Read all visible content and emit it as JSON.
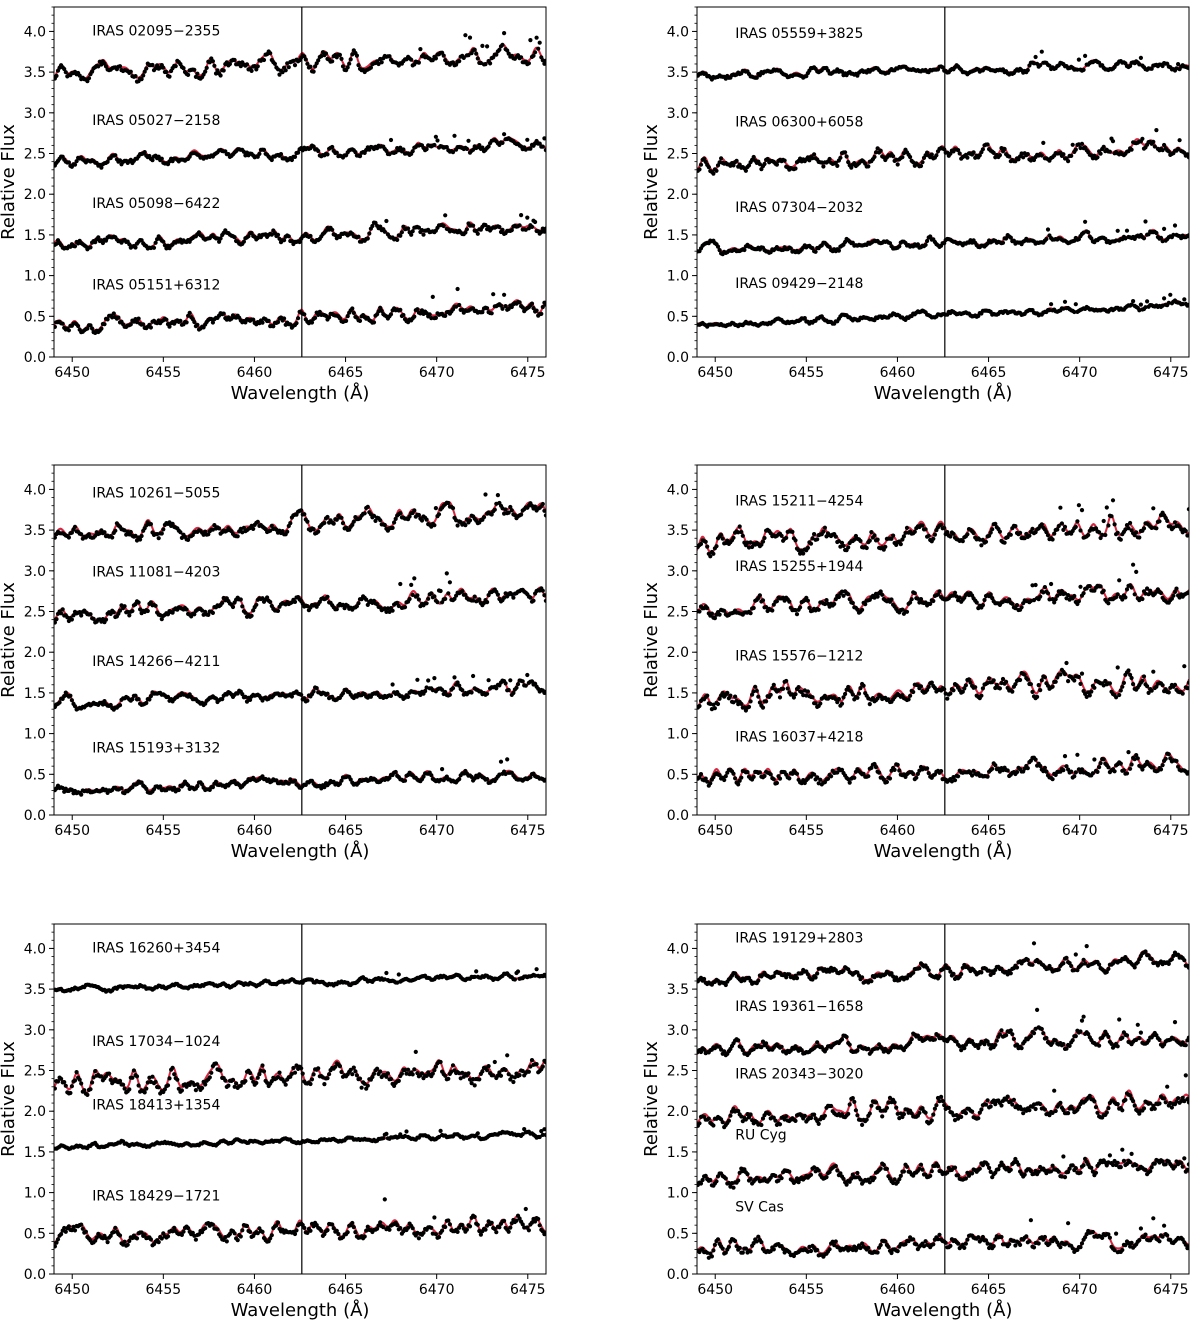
{
  "figure": {
    "x_axis_label": "Wavelength (Å)",
    "y_axis_label": "Relative Flux"
  },
  "colors": {
    "model": "#d7263d",
    "model_alt": "#6a0dad",
    "observed": "#000000"
  },
  "chart_data": [
    {
      "type": "line",
      "panel": "top-left",
      "xlabel": "Wavelength (Å)",
      "ylabel": "Relative Flux",
      "xlim": [
        6449,
        6476
      ],
      "ylim": [
        0.0,
        4.3
      ],
      "xticks": [
        6450,
        6455,
        6460,
        6465,
        6470,
        6475
      ],
      "yticks": [
        0.0,
        0.5,
        1.0,
        1.5,
        2.0,
        2.5,
        3.0,
        3.5,
        4.0
      ],
      "vline_x": 6462.6,
      "series": [
        {
          "name": "IRAS 02095−2355",
          "baseline_start": 3.5,
          "baseline_end": 3.75,
          "amplitude": 0.2,
          "seed": 1
        },
        {
          "name": "IRAS 05027−2158",
          "baseline_start": 2.4,
          "baseline_end": 2.65,
          "amplitude": 0.13,
          "seed": 2
        },
        {
          "name": "IRAS 05098−6422",
          "baseline_start": 1.38,
          "baseline_end": 1.62,
          "amplitude": 0.15,
          "seed": 3
        },
        {
          "name": "IRAS 05151+6312",
          "baseline_start": 0.38,
          "baseline_end": 0.6,
          "amplitude": 0.16,
          "seed": 4
        }
      ]
    },
    {
      "type": "line",
      "panel": "top-right",
      "xlabel": "Wavelength (Å)",
      "ylabel": "Relative Flux",
      "xlim": [
        6449,
        6476
      ],
      "ylim": [
        0.0,
        4.3
      ],
      "xticks": [
        6450,
        6455,
        6460,
        6465,
        6470,
        6475
      ],
      "yticks": [
        0.0,
        0.5,
        1.0,
        1.5,
        2.0,
        2.5,
        3.0,
        3.5,
        4.0
      ],
      "vline_x": 6462.6,
      "series": [
        {
          "name": "IRAS 05559+3825",
          "baseline_start": 3.47,
          "baseline_end": 3.6,
          "amplitude": 0.1,
          "seed": 5
        },
        {
          "name": "IRAS 06300+6058",
          "baseline_start": 2.38,
          "baseline_end": 2.6,
          "amplitude": 0.18,
          "seed": 6
        },
        {
          "name": "IRAS 07304−2032",
          "baseline_start": 1.33,
          "baseline_end": 1.52,
          "amplitude": 0.12,
          "seed": 7
        },
        {
          "name": "IRAS 09429−2148",
          "baseline_start": 0.4,
          "baseline_end": 0.65,
          "amplitude": 0.08,
          "seed": 8
        }
      ]
    },
    {
      "type": "line",
      "panel": "middle-left",
      "xlabel": "Wavelength (Å)",
      "ylabel": "Relative Flux",
      "xlim": [
        6449,
        6476
      ],
      "ylim": [
        0.0,
        4.3
      ],
      "xticks": [
        6450,
        6455,
        6460,
        6465,
        6470,
        6475
      ],
      "yticks": [
        0.0,
        0.5,
        1.0,
        1.5,
        2.0,
        2.5,
        3.0,
        3.5,
        4.0
      ],
      "vline_x": 6462.6,
      "series": [
        {
          "name": "IRAS 10261−5055",
          "baseline_start": 3.45,
          "baseline_end": 3.75,
          "amplitude": 0.2,
          "seed": 9
        },
        {
          "name": "IRAS 11081−4203",
          "baseline_start": 2.48,
          "baseline_end": 2.72,
          "amplitude": 0.18,
          "seed": 10
        },
        {
          "name": "IRAS 14266−4211",
          "baseline_start": 1.38,
          "baseline_end": 1.6,
          "amplitude": 0.14,
          "seed": 11
        },
        {
          "name": "IRAS 15193+3132",
          "baseline_start": 0.32,
          "baseline_end": 0.52,
          "amplitude": 0.13,
          "seed": 12
        }
      ]
    },
    {
      "type": "line",
      "panel": "middle-right",
      "xlabel": "Wavelength (Å)",
      "ylabel": "Relative Flux",
      "xlim": [
        6449,
        6476
      ],
      "ylim": [
        0.0,
        4.3
      ],
      "xticks": [
        6450,
        6455,
        6460,
        6465,
        6470,
        6475
      ],
      "yticks": [
        0.0,
        0.5,
        1.0,
        1.5,
        2.0,
        2.5,
        3.0,
        3.5,
        4.0
      ],
      "vline_x": 6462.6,
      "series": [
        {
          "name": "IRAS 15211−4254",
          "baseline_start": 3.35,
          "baseline_end": 3.6,
          "amplitude": 0.24,
          "seed": 13
        },
        {
          "name": "IRAS 15255+1944",
          "baseline_start": 2.55,
          "baseline_end": 2.75,
          "amplitude": 0.2,
          "seed": 14
        },
        {
          "name": "IRAS 15576−1212",
          "baseline_start": 1.45,
          "baseline_end": 1.65,
          "amplitude": 0.24,
          "seed": 15
        },
        {
          "name": "IRAS 16037+4218",
          "baseline_start": 0.45,
          "baseline_end": 0.65,
          "amplitude": 0.2,
          "seed": 16
        }
      ]
    },
    {
      "type": "line",
      "panel": "bottom-left",
      "xlabel": "Wavelength (Å)",
      "ylabel": "Relative Flux",
      "xlim": [
        6449,
        6476
      ],
      "ylim": [
        0.0,
        4.3
      ],
      "xticks": [
        6450,
        6455,
        6460,
        6465,
        6470,
        6475
      ],
      "yticks": [
        0.0,
        0.5,
        1.0,
        1.5,
        2.0,
        2.5,
        3.0,
        3.5,
        4.0
      ],
      "vline_x": 6462.6,
      "series": [
        {
          "name": "IRAS 16260+3454",
          "baseline_start": 3.5,
          "baseline_end": 3.68,
          "amplitude": 0.07,
          "seed": 17
        },
        {
          "name": "IRAS 17034−1024",
          "baseline_start": 2.35,
          "baseline_end": 2.55,
          "amplitude": 0.26,
          "seed": 18
        },
        {
          "name": "IRAS 18413+1354",
          "baseline_start": 1.57,
          "baseline_end": 1.72,
          "amplitude": 0.06,
          "seed": 19
        },
        {
          "name": "IRAS 18429−1721",
          "baseline_start": 0.45,
          "baseline_end": 0.62,
          "amplitude": 0.2,
          "seed": 20
        }
      ]
    },
    {
      "type": "line",
      "panel": "bottom-right",
      "xlabel": "Wavelength (Å)",
      "ylabel": "Relative Flux",
      "xlim": [
        6449,
        6476
      ],
      "ylim": [
        0.0,
        4.3
      ],
      "xticks": [
        6450,
        6455,
        6460,
        6465,
        6470,
        6475
      ],
      "yticks": [
        0.0,
        0.5,
        1.0,
        1.5,
        2.0,
        2.5,
        3.0,
        3.5,
        4.0
      ],
      "vline_x": 6462.6,
      "series": [
        {
          "name": "IRAS 19129+2803",
          "baseline_start": 3.62,
          "baseline_end": 3.85,
          "amplitude": 0.15,
          "seed": 21
        },
        {
          "name": "IRAS 19361−1658",
          "baseline_start": 2.78,
          "baseline_end": 2.95,
          "amplitude": 0.18,
          "seed": 22
        },
        {
          "name": "IRAS 20343−3020",
          "baseline_start": 1.95,
          "baseline_end": 2.15,
          "amplitude": 0.24,
          "seed": 23
        },
        {
          "name": "RU Cyg",
          "baseline_start": 1.2,
          "baseline_end": 1.35,
          "amplitude": 0.2,
          "seed": 24
        },
        {
          "name": "SV Cas",
          "baseline_start": 0.32,
          "baseline_end": 0.45,
          "amplitude": 0.2,
          "seed": 25
        }
      ]
    }
  ]
}
